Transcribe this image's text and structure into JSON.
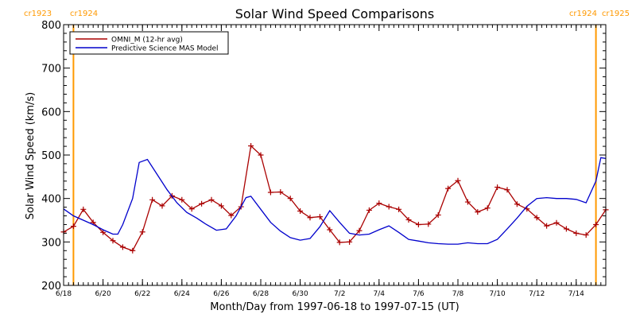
{
  "chart_data": {
    "type": "line",
    "title": "Solar Wind Speed Comparisons",
    "xlabel": "Month/Day from 1997-06-18 to 1997-07-15 (UT)",
    "ylabel": "Solar Wind Speed (km/s)",
    "ylim": [
      200,
      800
    ],
    "yticks": [
      200,
      300,
      400,
      500,
      600,
      700,
      800
    ],
    "xlim": [
      "1997-06-18T00:00",
      "1997-07-15T12:00"
    ],
    "xticks": [
      {
        "date": "1997-06-18",
        "label": "6/18"
      },
      {
        "date": "1997-06-20",
        "label": "6/20"
      },
      {
        "date": "1997-06-22",
        "label": "6/22"
      },
      {
        "date": "1997-06-24",
        "label": "6/24"
      },
      {
        "date": "1997-06-26",
        "label": "6/26"
      },
      {
        "date": "1997-06-28",
        "label": "6/28"
      },
      {
        "date": "1997-06-30",
        "label": "6/30"
      },
      {
        "date": "1997-07-02",
        "label": "7/2"
      },
      {
        "date": "1997-07-04",
        "label": "7/4"
      },
      {
        "date": "1997-07-06",
        "label": "7/6"
      },
      {
        "date": "1997-07-08",
        "label": "7/8"
      },
      {
        "date": "1997-07-10",
        "label": "7/10"
      },
      {
        "date": "1997-07-12",
        "label": "7/12"
      },
      {
        "date": "1997-07-14",
        "label": "7/14"
      }
    ],
    "grid": false,
    "legend_position": "top-left",
    "carrington_markers": [
      {
        "date": "1997-06-18T12:00",
        "left_label": "cr1923",
        "right_label": "cr1924",
        "label_position": "top-left",
        "color": "#ff9900"
      },
      {
        "date": "1997-07-15T00:00",
        "left_label": "cr1924",
        "right_label": "cr1925",
        "label_position": "top-right",
        "color": "#ff9900"
      }
    ],
    "series": [
      {
        "name": "OMNI_M (12-hr avg)",
        "color": "#aa0000",
        "marker": "plus",
        "points": [
          [
            "1997-06-18T00:00",
            323
          ],
          [
            "1997-06-18T12:00",
            336
          ],
          [
            "1997-06-19T00:00",
            375
          ],
          [
            "1997-06-19T12:00",
            345
          ],
          [
            "1997-06-20T00:00",
            322
          ],
          [
            "1997-06-20T12:00",
            303
          ],
          [
            "1997-06-21T00:00",
            288
          ],
          [
            "1997-06-21T12:00",
            280
          ],
          [
            "1997-06-22T00:00",
            323
          ],
          [
            "1997-06-22T12:00",
            397
          ],
          [
            "1997-06-23T00:00",
            383
          ],
          [
            "1997-06-23T12:00",
            406
          ],
          [
            "1997-06-24T00:00",
            397
          ],
          [
            "1997-06-24T12:00",
            376
          ],
          [
            "1997-06-25T00:00",
            388
          ],
          [
            "1997-06-25T12:00",
            397
          ],
          [
            "1997-06-26T00:00",
            383
          ],
          [
            "1997-06-26T12:00",
            361
          ],
          [
            "1997-06-27T00:00",
            381
          ],
          [
            "1997-06-27T12:00",
            521
          ],
          [
            "1997-06-28T00:00",
            500
          ],
          [
            "1997-06-28T12:00",
            414
          ],
          [
            "1997-06-29T00:00",
            415
          ],
          [
            "1997-06-29T12:00",
            400
          ],
          [
            "1997-06-30T00:00",
            371
          ],
          [
            "1997-06-30T12:00",
            356
          ],
          [
            "1997-07-01T00:00",
            358
          ],
          [
            "1997-07-01T12:00",
            328
          ],
          [
            "1997-07-02T00:00",
            299
          ],
          [
            "1997-07-02T12:00",
            300
          ],
          [
            "1997-07-03T00:00",
            326
          ],
          [
            "1997-07-03T12:00",
            373
          ],
          [
            "1997-07-04T00:00",
            389
          ],
          [
            "1997-07-04T12:00",
            381
          ],
          [
            "1997-07-05T00:00",
            375
          ],
          [
            "1997-07-05T12:00",
            351
          ],
          [
            "1997-07-06T00:00",
            340
          ],
          [
            "1997-07-06T12:00",
            341
          ],
          [
            "1997-07-07T00:00",
            362
          ],
          [
            "1997-07-07T12:00",
            423
          ],
          [
            "1997-07-08T00:00",
            441
          ],
          [
            "1997-07-08T12:00",
            392
          ],
          [
            "1997-07-09T00:00",
            369
          ],
          [
            "1997-07-09T12:00",
            378
          ],
          [
            "1997-07-10T00:00",
            426
          ],
          [
            "1997-07-10T12:00",
            420
          ],
          [
            "1997-07-11T00:00",
            387
          ],
          [
            "1997-07-11T12:00",
            376
          ],
          [
            "1997-07-12T00:00",
            356
          ],
          [
            "1997-07-12T12:00",
            337
          ],
          [
            "1997-07-13T00:00",
            344
          ],
          [
            "1997-07-13T12:00",
            330
          ],
          [
            "1997-07-14T00:00",
            320
          ],
          [
            "1997-07-14T12:00",
            316
          ],
          [
            "1997-07-15T00:00",
            340
          ],
          [
            "1997-07-15T12:00",
            374
          ]
        ]
      },
      {
        "name": "Predictive Science MAS Model",
        "color": "#0000cc",
        "marker": "none",
        "points": [
          [
            "1997-06-18T00:00",
            376
          ],
          [
            "1997-06-18T12:00",
            360
          ],
          [
            "1997-06-19T00:00",
            350
          ],
          [
            "1997-06-19T12:00",
            340
          ],
          [
            "1997-06-20T00:00",
            328
          ],
          [
            "1997-06-20T12:00",
            318
          ],
          [
            "1997-06-20T18:00",
            318
          ],
          [
            "1997-06-21T00:00",
            340
          ],
          [
            "1997-06-21T12:00",
            400
          ],
          [
            "1997-06-21T20:00",
            483
          ],
          [
            "1997-06-22T06:00",
            490
          ],
          [
            "1997-06-22T18:00",
            455
          ],
          [
            "1997-06-23T06:00",
            420
          ],
          [
            "1997-06-23T18:00",
            390
          ],
          [
            "1997-06-24T06:00",
            368
          ],
          [
            "1997-06-24T18:00",
            355
          ],
          [
            "1997-06-25T06:00",
            340
          ],
          [
            "1997-06-25T18:00",
            327
          ],
          [
            "1997-06-26T06:00",
            330
          ],
          [
            "1997-06-26T18:00",
            360
          ],
          [
            "1997-06-27T06:00",
            402
          ],
          [
            "1997-06-27T12:00",
            405
          ],
          [
            "1997-06-28T00:00",
            375
          ],
          [
            "1997-06-28T12:00",
            345
          ],
          [
            "1997-06-29T00:00",
            325
          ],
          [
            "1997-06-29T12:00",
            310
          ],
          [
            "1997-06-30T00:00",
            304
          ],
          [
            "1997-06-30T12:00",
            308
          ],
          [
            "1997-07-01T00:00",
            335
          ],
          [
            "1997-07-01T12:00",
            372
          ],
          [
            "1997-07-02T00:00",
            345
          ],
          [
            "1997-07-02T12:00",
            320
          ],
          [
            "1997-07-03T00:00",
            316
          ],
          [
            "1997-07-03T12:00",
            318
          ],
          [
            "1997-07-04T00:00",
            328
          ],
          [
            "1997-07-04T12:00",
            337
          ],
          [
            "1997-07-05T00:00",
            322
          ],
          [
            "1997-07-05T12:00",
            306
          ],
          [
            "1997-07-06T00:00",
            302
          ],
          [
            "1997-07-06T12:00",
            298
          ],
          [
            "1997-07-07T00:00",
            296
          ],
          [
            "1997-07-07T12:00",
            295
          ],
          [
            "1997-07-08T00:00",
            295
          ],
          [
            "1997-07-08T12:00",
            298
          ],
          [
            "1997-07-09T00:00",
            296
          ],
          [
            "1997-07-09T12:00",
            296
          ],
          [
            "1997-07-10T00:00",
            306
          ],
          [
            "1997-07-10T12:00",
            330
          ],
          [
            "1997-07-11T00:00",
            355
          ],
          [
            "1997-07-11T12:00",
            382
          ],
          [
            "1997-07-12T00:00",
            400
          ],
          [
            "1997-07-12T12:00",
            402
          ],
          [
            "1997-07-13T00:00",
            400
          ],
          [
            "1997-07-13T12:00",
            400
          ],
          [
            "1997-07-14T00:00",
            398
          ],
          [
            "1997-07-14T12:00",
            390
          ],
          [
            "1997-07-15T00:00",
            440
          ],
          [
            "1997-07-15T06:00",
            494
          ],
          [
            "1997-07-15T12:00",
            492
          ]
        ]
      }
    ]
  }
}
